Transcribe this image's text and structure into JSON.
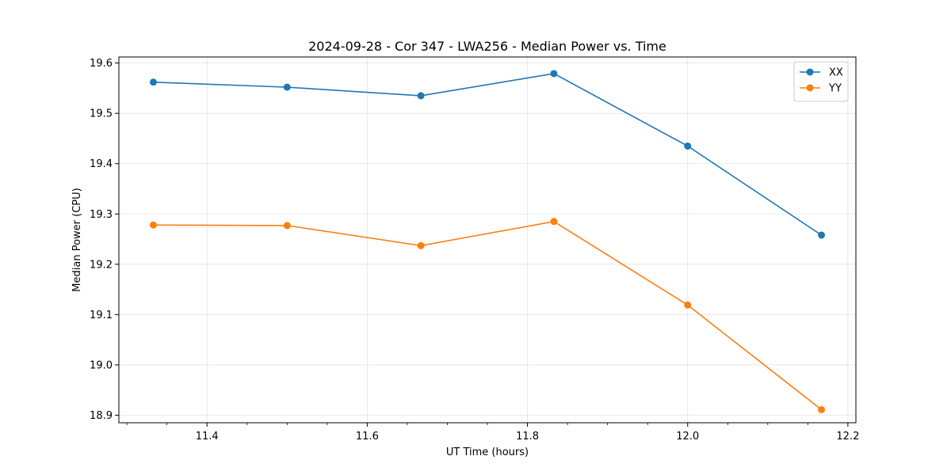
{
  "chart_data": {
    "type": "line",
    "title": "2024-09-28 - Cor 347 - LWA256 - Median Power vs. Time",
    "xlabel": "UT Time (hours)",
    "ylabel": "Median Power (CPU)",
    "xlim": [
      11.29,
      12.21
    ],
    "ylim": [
      18.885,
      19.612
    ],
    "x_ticks": [
      11.4,
      11.6,
      11.8,
      12.0,
      12.2
    ],
    "x_tick_labels": [
      "11.4",
      "11.6",
      "11.8",
      "12.0",
      "12.2"
    ],
    "x_minor_ticks": [
      11.3,
      11.35,
      11.45,
      11.5,
      11.55,
      11.65,
      11.7,
      11.75,
      11.85,
      11.9,
      11.95,
      12.05,
      12.1,
      12.15
    ],
    "y_ticks": [
      18.9,
      19.0,
      19.1,
      19.2,
      19.3,
      19.4,
      19.5,
      19.6
    ],
    "y_tick_labels": [
      "18.9",
      "19.0",
      "19.1",
      "19.2",
      "19.3",
      "19.4",
      "19.5",
      "19.6"
    ],
    "grid": true,
    "legend_position": "top-right",
    "x": [
      11.333,
      11.5,
      11.667,
      11.833,
      12.0,
      12.167
    ],
    "series": [
      {
        "name": "XX",
        "color": "#1f77b4",
        "values": [
          19.562,
          19.552,
          19.535,
          19.579,
          19.435,
          19.258
        ]
      },
      {
        "name": "YY",
        "color": "#ff7f0e",
        "values": [
          19.278,
          19.277,
          19.237,
          19.285,
          19.119,
          18.911
        ]
      }
    ]
  }
}
